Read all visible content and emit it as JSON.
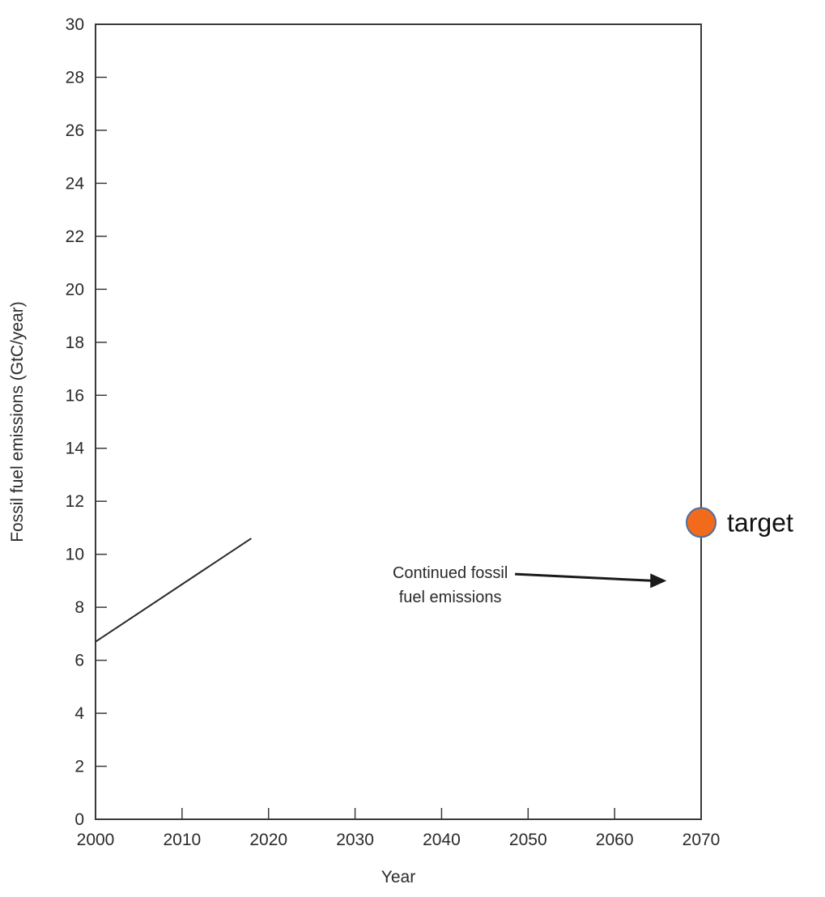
{
  "chart_data": {
    "type": "line",
    "title": "",
    "xlabel": "Year",
    "ylabel": "Fossil fuel emissions (GtC/year)",
    "xlim": [
      2000,
      2070
    ],
    "ylim": [
      0,
      30
    ],
    "x_ticks": [
      2000,
      2010,
      2020,
      2030,
      2040,
      2050,
      2060,
      2070
    ],
    "y_ticks": [
      0,
      2,
      4,
      6,
      8,
      10,
      12,
      14,
      16,
      18,
      20,
      22,
      24,
      26,
      28,
      30
    ],
    "grid": false,
    "series": [
      {
        "x": [
          2000,
          2018
        ],
        "y": [
          6.7,
          10.6
        ],
        "color": "#2a2a2a"
      }
    ],
    "annotations": [
      {
        "text_lines": [
          "Continued fossil",
          "fuel emissions"
        ],
        "x": 2041,
        "y": 9.1,
        "arrow_to": [
          2066,
          9.0
        ]
      }
    ],
    "target": {
      "label": "target",
      "x": 2070,
      "y": 11.2,
      "color": "#f26a1b",
      "stroke": "#4a6fa5"
    }
  }
}
